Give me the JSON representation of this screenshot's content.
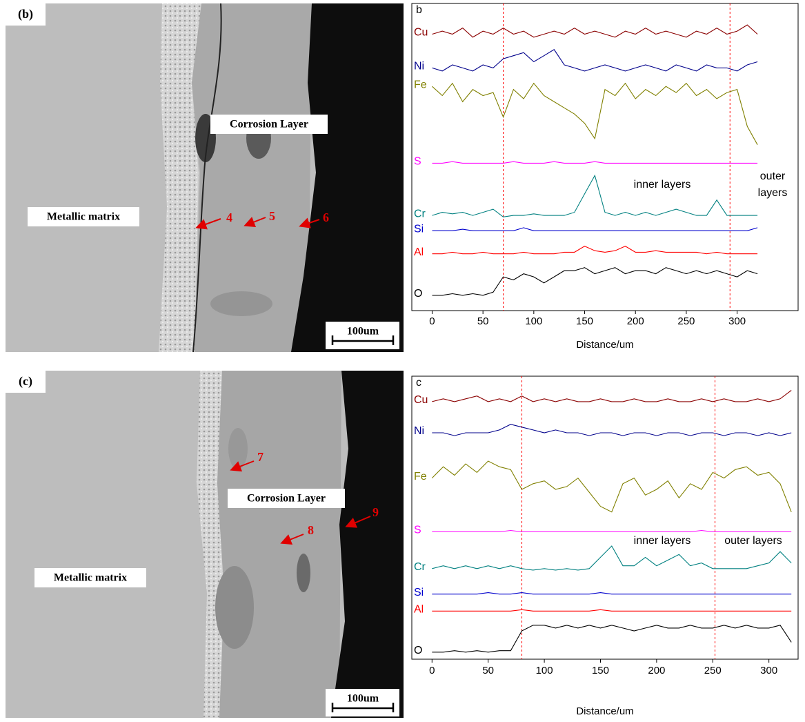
{
  "chart_data": [
    {
      "type": "line",
      "title": "b",
      "x_label": "Distance/um",
      "x": [
        0,
        10,
        20,
        30,
        40,
        50,
        60,
        70,
        80,
        90,
        100,
        110,
        120,
        130,
        140,
        150,
        160,
        170,
        180,
        190,
        200,
        210,
        220,
        230,
        240,
        250,
        260,
        270,
        280,
        290,
        300,
        310,
        320
      ],
      "xlim": [
        -20,
        360
      ],
      "xticks": [
        0,
        50,
        100,
        150,
        200,
        250,
        300
      ],
      "ylim": [
        0,
        100
      ],
      "markers_x": [
        70,
        293
      ],
      "marker_color": "#ff0000",
      "annotations": [
        "inner layers",
        "outer",
        "layers"
      ],
      "series": [
        {
          "name": "Cu",
          "color": "#8b0000",
          "values": [
            90,
            91,
            90,
            92,
            89,
            91,
            90,
            92,
            90,
            91,
            89,
            90,
            91,
            90,
            92,
            90,
            91,
            90,
            89,
            91,
            90,
            92,
            90,
            91,
            90,
            89,
            91,
            90,
            92,
            90,
            91,
            93,
            90
          ]
        },
        {
          "name": "Ni",
          "color": "#00008b",
          "values": [
            79,
            78,
            80,
            79,
            78,
            80,
            79,
            82,
            83,
            84,
            81,
            83,
            85,
            80,
            79,
            78,
            79,
            80,
            79,
            78,
            79,
            80,
            79,
            78,
            80,
            79,
            78,
            80,
            79,
            79,
            78,
            80,
            81
          ]
        },
        {
          "name": "Fe",
          "color": "#808000",
          "values": [
            73,
            70,
            74,
            68,
            72,
            70,
            71,
            63,
            72,
            69,
            74,
            70,
            68,
            66,
            64,
            61,
            56,
            72,
            70,
            74,
            69,
            72,
            70,
            73,
            71,
            74,
            70,
            72,
            69,
            71,
            72,
            60,
            54
          ]
        },
        {
          "name": "S",
          "color": "#ff00ff",
          "values": [
            48,
            48,
            48.5,
            48,
            48,
            48,
            48,
            48,
            48.5,
            48,
            48,
            48,
            48.5,
            48,
            48,
            48,
            48.5,
            48,
            48,
            48,
            48,
            48,
            48,
            48,
            48,
            48,
            48,
            48,
            48,
            48,
            48,
            48,
            48
          ]
        },
        {
          "name": "Cr",
          "color": "#008080",
          "values": [
            31,
            32,
            31.5,
            32,
            31,
            32,
            33,
            30.5,
            31,
            31,
            31.5,
            31,
            31,
            31,
            32,
            38,
            44,
            32,
            31,
            32,
            31,
            32,
            31,
            32,
            33,
            32,
            31,
            31,
            36,
            31,
            31,
            31,
            31
          ]
        },
        {
          "name": "Si",
          "color": "#0000cd",
          "values": [
            26,
            26,
            26,
            26.5,
            26,
            26,
            26,
            26,
            26,
            27,
            26,
            26,
            26,
            26,
            26,
            26,
            26,
            26,
            26,
            26,
            26,
            26,
            26,
            26,
            26,
            26,
            26,
            26,
            26,
            26,
            26,
            26,
            27
          ]
        },
        {
          "name": "Al",
          "color": "#ff0000",
          "values": [
            18.5,
            18.5,
            19,
            18.5,
            18.5,
            19,
            18.5,
            18.5,
            18.5,
            19,
            18.5,
            18.5,
            18.5,
            19,
            19,
            21,
            19.5,
            19,
            19.5,
            21,
            19,
            19,
            19.5,
            19,
            19,
            19,
            19,
            18.5,
            19,
            18.5,
            18.5,
            18.5,
            18.5
          ]
        },
        {
          "name": "O",
          "color": "#000000",
          "values": [
            5,
            5,
            5.5,
            5,
            5.5,
            5,
            6,
            11,
            10,
            12,
            11,
            9,
            11,
            13,
            13,
            14,
            12,
            13,
            14,
            12,
            13,
            13,
            12,
            14,
            13,
            12,
            13,
            12,
            13,
            12,
            11,
            13,
            12
          ]
        }
      ]
    },
    {
      "type": "line",
      "title": "c",
      "x_label": "Distance/um",
      "x": [
        0,
        10,
        20,
        30,
        40,
        50,
        60,
        70,
        80,
        90,
        100,
        110,
        120,
        130,
        140,
        150,
        160,
        170,
        180,
        190,
        200,
        210,
        220,
        230,
        240,
        250,
        260,
        270,
        280,
        290,
        300,
        310,
        320
      ],
      "xlim": [
        -18,
        326
      ],
      "xticks": [
        0,
        50,
        100,
        150,
        200,
        250,
        300
      ],
      "ylim": [
        0,
        100
      ],
      "markers_x": [
        80,
        252
      ],
      "marker_color": "#ff0000",
      "annotations": [
        "inner layers",
        "outer layers"
      ],
      "series": [
        {
          "name": "Cu",
          "color": "#8b0000",
          "values": [
            91,
            92,
            91,
            92,
            93,
            91,
            92,
            91,
            93,
            91,
            92,
            91,
            92,
            91,
            91,
            92,
            91,
            91,
            92,
            91,
            91,
            92,
            91,
            91,
            92,
            91,
            92,
            91,
            91,
            92,
            91,
            92,
            95
          ]
        },
        {
          "name": "Ni",
          "color": "#00008b",
          "values": [
            80,
            80,
            79,
            80,
            80,
            80,
            81,
            83,
            82,
            81,
            80,
            81,
            80,
            80,
            79,
            80,
            80,
            79,
            80,
            80,
            79,
            80,
            80,
            79,
            80,
            80,
            79,
            80,
            80,
            79,
            80,
            79,
            80
          ]
        },
        {
          "name": "Fe",
          "color": "#808000",
          "values": [
            64,
            68,
            65,
            69,
            66,
            70,
            68,
            67,
            60,
            62,
            63,
            60,
            61,
            64,
            59,
            54,
            52,
            62,
            64,
            58,
            60,
            63,
            57,
            62,
            60,
            66,
            64,
            67,
            68,
            65,
            66,
            62,
            52
          ]
        },
        {
          "name": "S",
          "color": "#ff00ff",
          "values": [
            45,
            45,
            45,
            45,
            45,
            45,
            45,
            45.5,
            45,
            45,
            45,
            45,
            45,
            45,
            45,
            45,
            45,
            45,
            45,
            45,
            45,
            45,
            45,
            45,
            45.5,
            45,
            45,
            45,
            45,
            45,
            45,
            45,
            45
          ]
        },
        {
          "name": "Cr",
          "color": "#008080",
          "values": [
            32,
            33,
            32,
            33,
            32,
            33,
            32,
            33,
            32,
            31.5,
            32,
            31.5,
            32,
            31.5,
            32,
            36,
            40,
            33,
            33,
            36,
            33,
            35,
            37,
            33,
            34,
            32,
            32,
            32,
            32,
            33,
            34,
            38,
            34
          ]
        },
        {
          "name": "Si",
          "color": "#0000cd",
          "values": [
            23,
            23,
            23,
            23,
            23,
            23.5,
            23,
            23,
            23.5,
            23,
            23,
            23,
            23,
            23,
            23,
            23.5,
            23,
            23,
            23,
            23,
            23,
            23,
            23,
            23,
            23,
            23,
            23,
            23,
            23,
            23,
            23,
            23,
            23
          ]
        },
        {
          "name": "Al",
          "color": "#ff0000",
          "values": [
            17,
            17,
            17,
            17,
            17,
            17,
            17,
            17,
            17.5,
            17,
            17,
            17,
            17,
            17,
            17,
            17.5,
            17,
            17,
            17,
            17,
            17,
            17,
            17,
            17,
            17,
            17,
            17,
            17,
            17,
            17,
            17,
            17,
            17
          ]
        },
        {
          "name": "O",
          "color": "#000000",
          "values": [
            2.5,
            2.5,
            3,
            2.5,
            3,
            2.5,
            3,
            3,
            10,
            12,
            12,
            11,
            12,
            11,
            12,
            11,
            12,
            11,
            10,
            11,
            12,
            11,
            11,
            12,
            11,
            11,
            12,
            11,
            12,
            11,
            11,
            12,
            6
          ]
        }
      ]
    }
  ],
  "images": [
    {
      "panel_label": "(b)",
      "labels": [
        "Corrosion Layer",
        "Metallic matrix"
      ],
      "points": [
        "4",
        "5",
        "6"
      ],
      "scale_bar": "100um"
    },
    {
      "panel_label": "(c)",
      "labels": [
        "Corrosion Layer",
        "Metallic matrix"
      ],
      "points": [
        "7",
        "8",
        "9"
      ],
      "scale_bar": "100um"
    }
  ]
}
